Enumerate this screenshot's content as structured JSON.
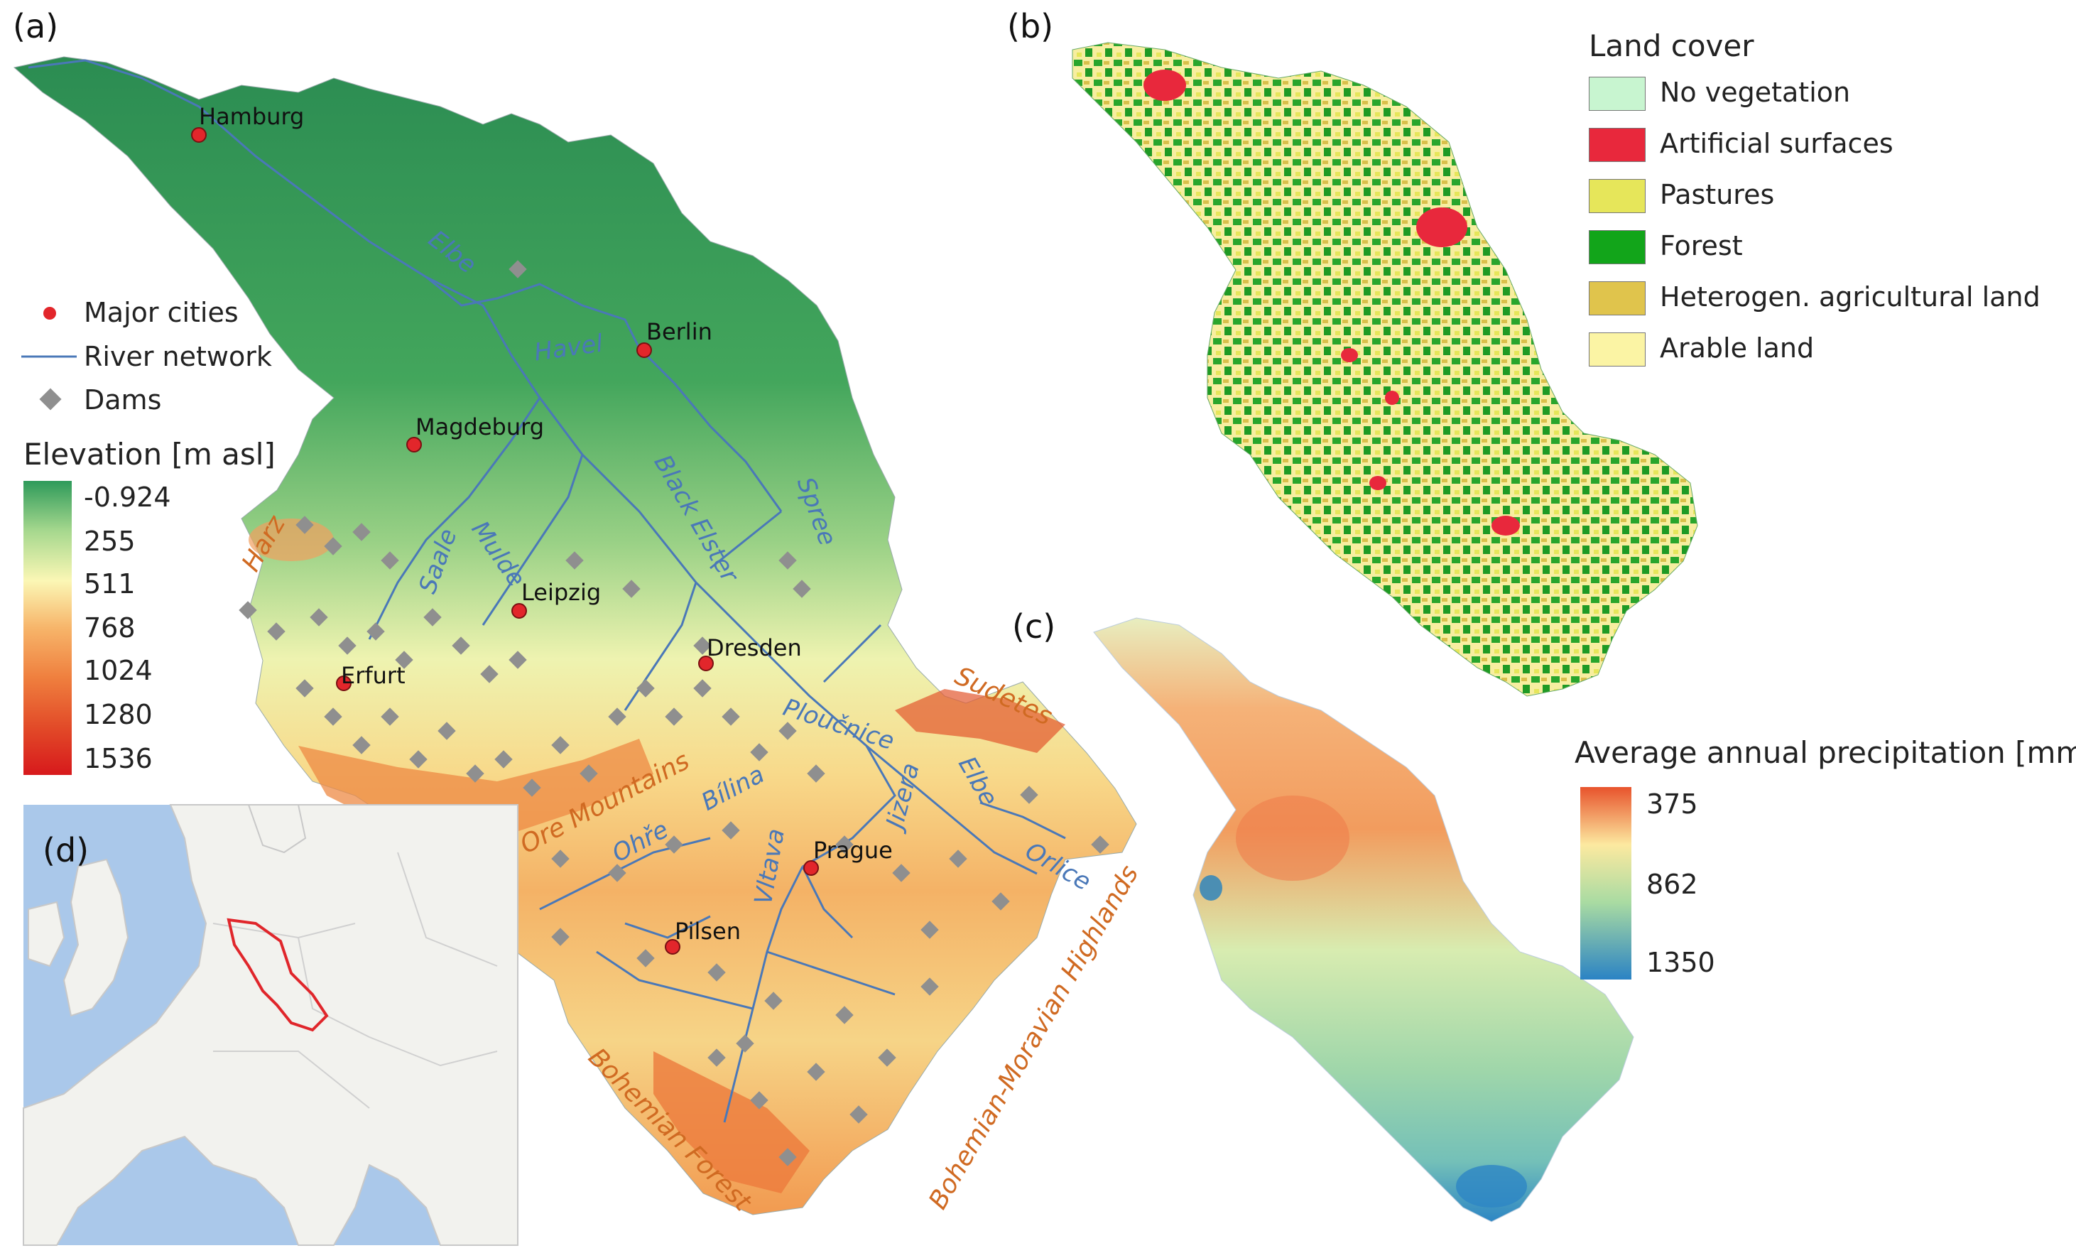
{
  "panels": {
    "a": "(a)",
    "b": "(b)",
    "c": "(c)",
    "d": "(d)"
  },
  "legend_a": {
    "items": [
      {
        "label": "Major cities",
        "icon": "red-dot-icon"
      },
      {
        "label": "River network",
        "icon": "blue-line-icon"
      },
      {
        "label": "Dams",
        "icon": "grey-diamond-icon"
      }
    ],
    "elevation_title": "Elevation [m asl]",
    "elevation_ticks": [
      "-0.924",
      "255",
      "511",
      "768",
      "1024",
      "1280",
      "1536"
    ],
    "elevation_colors": [
      "#2e9a5a",
      "#a6d88e",
      "#fbf7b5",
      "#f7b56a",
      "#ef7f3e",
      "#e24a28",
      "#d7191c"
    ]
  },
  "cities": [
    {
      "name": "Hamburg"
    },
    {
      "name": "Berlin"
    },
    {
      "name": "Magdeburg"
    },
    {
      "name": "Leipzig"
    },
    {
      "name": "Dresden"
    },
    {
      "name": "Erfurt"
    },
    {
      "name": "Prague"
    },
    {
      "name": "Pilsen"
    }
  ],
  "rivers": [
    "Elbe",
    "Havel",
    "Saale",
    "Mulde",
    "Black Elster",
    "Spree",
    "Ploučnice",
    "Jizera",
    "Elbe",
    "Bílina",
    "Ohře",
    "Vltava",
    "Orlice"
  ],
  "regions": [
    "Harz",
    "Ore Mountains",
    "Sudetes",
    "Bohemian Forest",
    "Bohemian-Moravian Highlands"
  ],
  "legend_b": {
    "title": "Land cover",
    "items": [
      {
        "label": "No vegetation",
        "color": "#c8f5d0"
      },
      {
        "label": "Artificial surfaces",
        "color": "#e8283c"
      },
      {
        "label": "Pastures",
        "color": "#e6e65a"
      },
      {
        "label": "Forest",
        "color": "#12a51a"
      },
      {
        "label": "Heterogen. agricultural land",
        "color": "#e0c44c"
      },
      {
        "label": "Arable land",
        "color": "#fbf4a4"
      }
    ]
  },
  "legend_c": {
    "title": "Average annual precipitation [mm]",
    "ticks": [
      "375",
      "862",
      "1350"
    ],
    "colors": [
      "#e8532c",
      "#fce9a0",
      "#a9dba2",
      "#2b83c4"
    ]
  }
}
